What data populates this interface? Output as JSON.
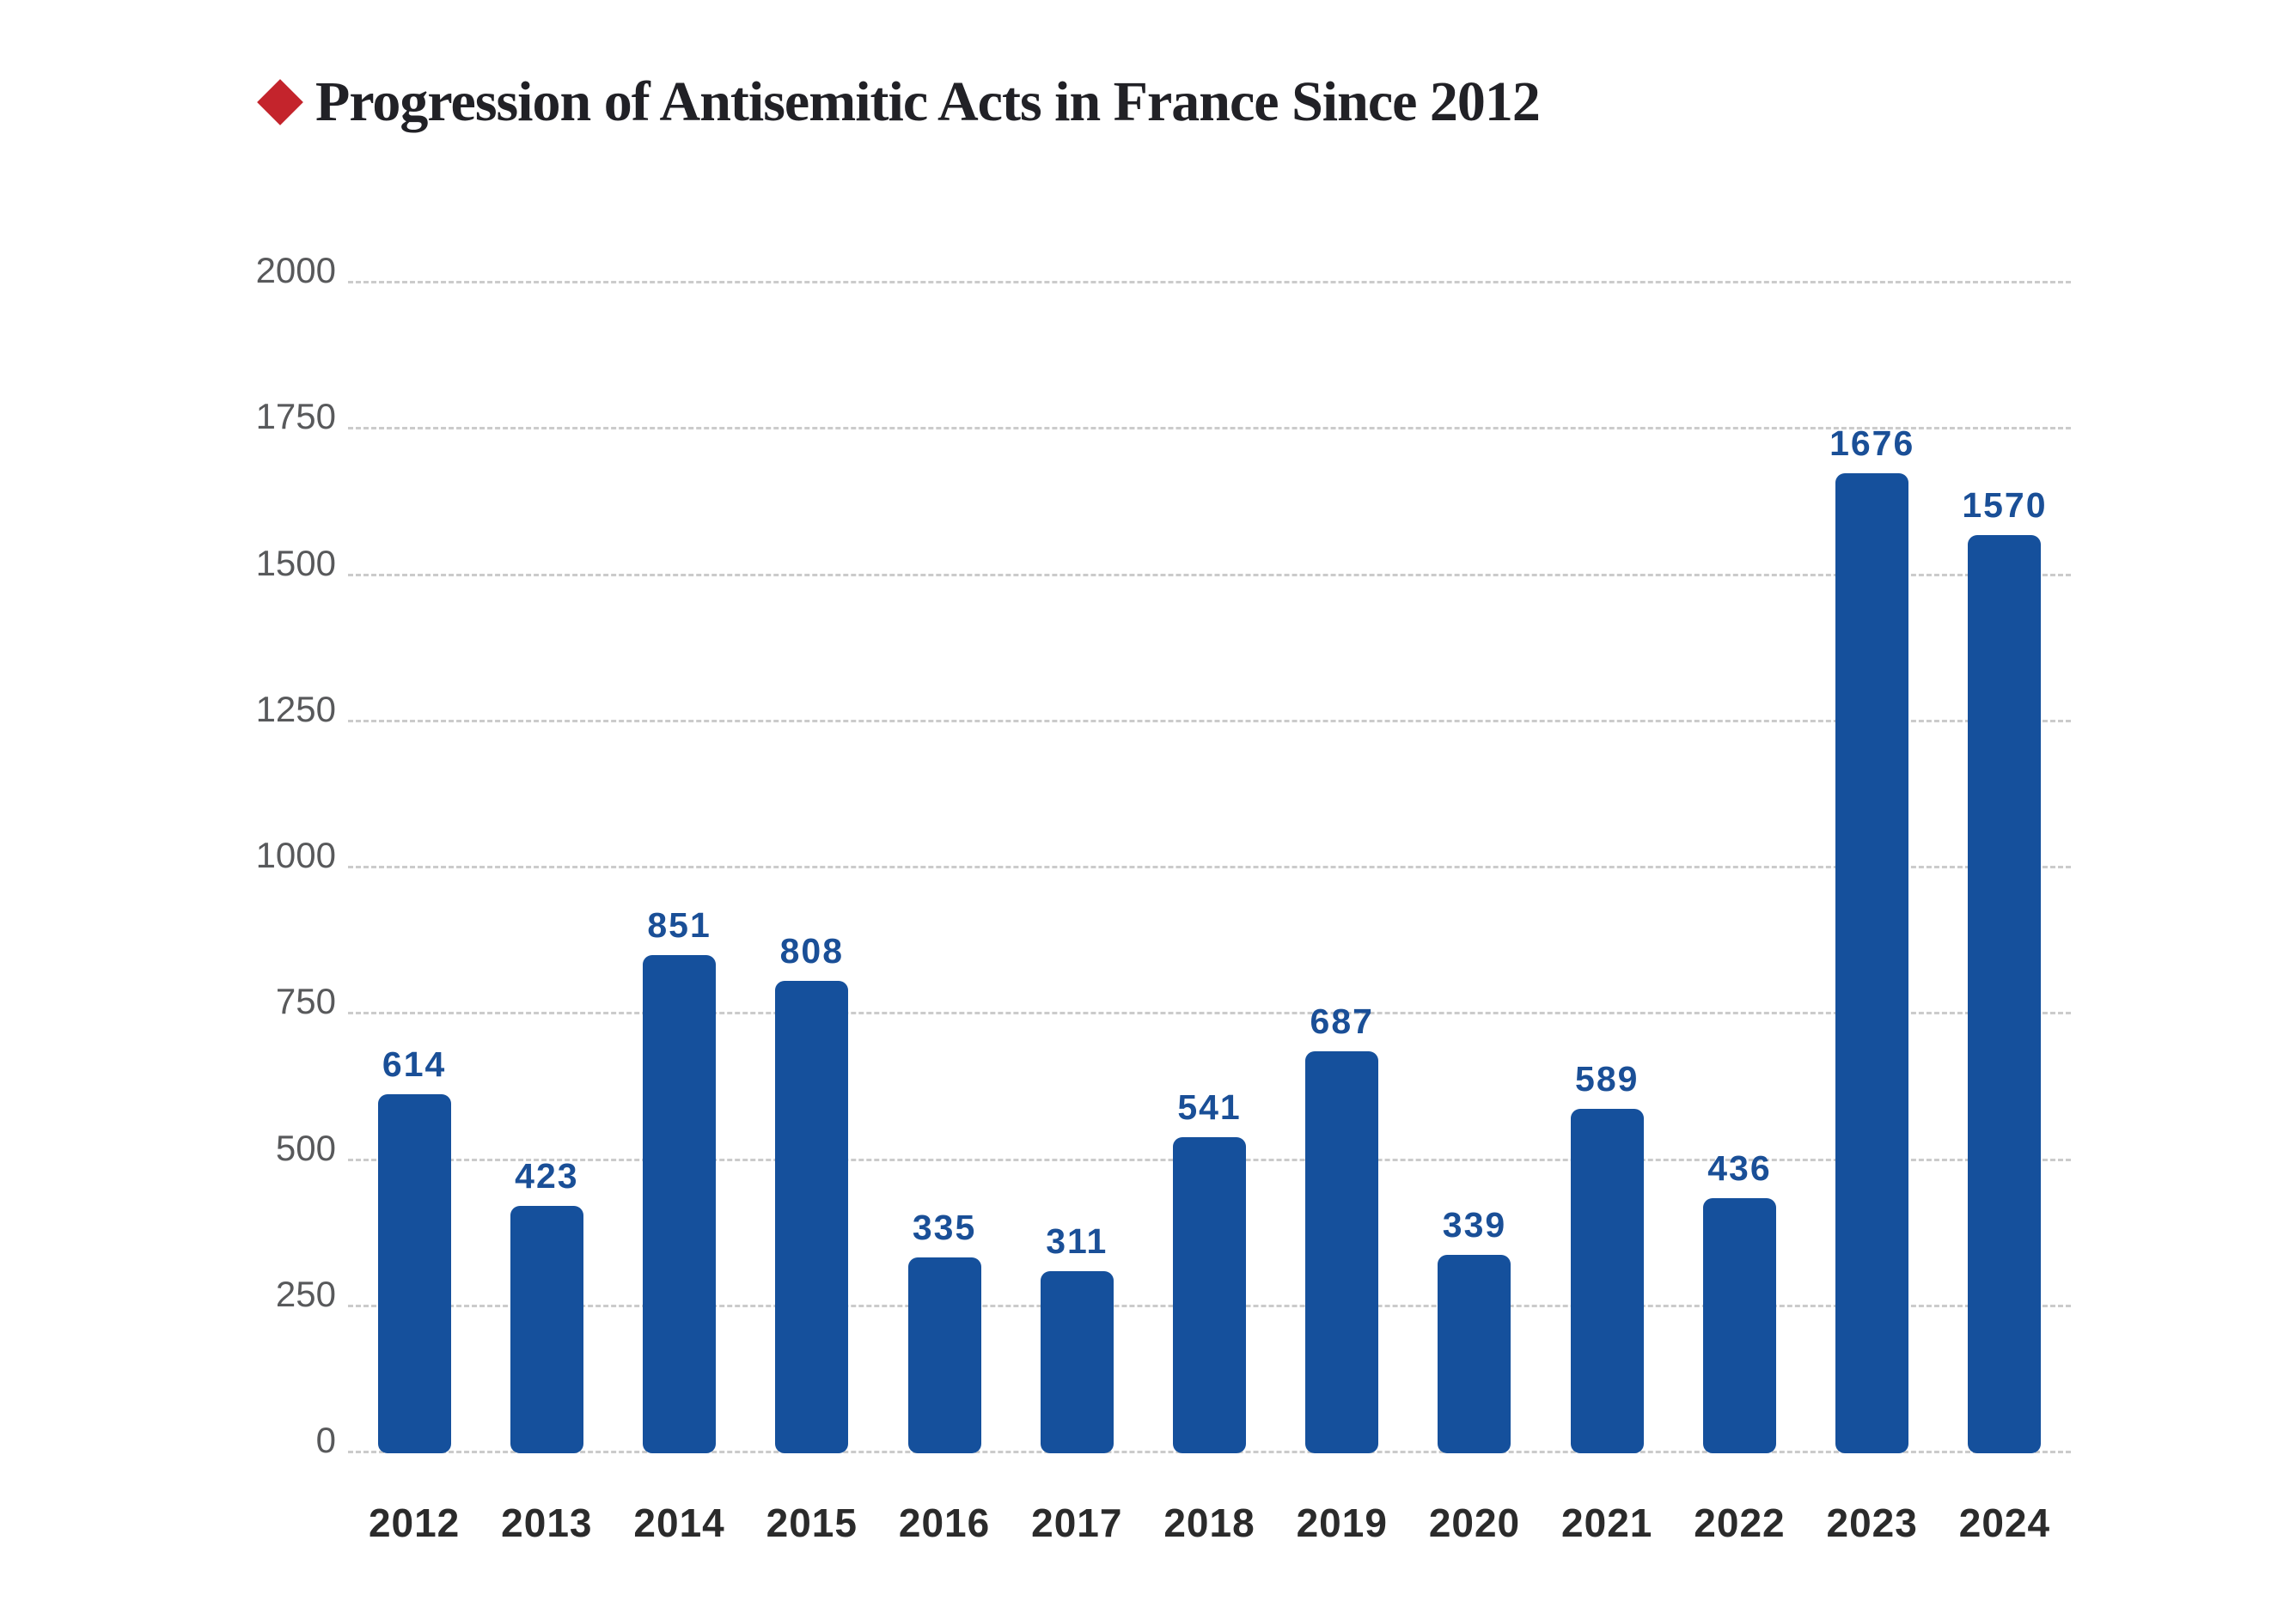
{
  "header": {
    "title": "Progression of Antisemitic Acts in France Since 2012",
    "bullet_icon": "red-diamond",
    "bullet_color": "#C4242C"
  },
  "chart_data": {
    "type": "bar",
    "title": "Progression of Antisemitic Acts in France Since 2012",
    "categories": [
      "2012",
      "2013",
      "2014",
      "2015",
      "2016",
      "2017",
      "2018",
      "2019",
      "2020",
      "2021",
      "2022",
      "2023",
      "2024"
    ],
    "values": [
      614,
      423,
      851,
      808,
      335,
      311,
      541,
      687,
      339,
      589,
      436,
      1676,
      1570
    ],
    "xlabel": "",
    "ylabel": "",
    "ylim": [
      0,
      2000
    ],
    "y_ticks": [
      0,
      250,
      500,
      750,
      1000,
      1250,
      1500,
      1750,
      2000
    ],
    "grid": "horizontal-dashed",
    "legend": "none",
    "value_labels": "above-bars",
    "colors": {
      "bar": "#15509C",
      "value_label": "#1A4F97",
      "y_tick_label": "#58595B",
      "x_tick_label": "#2B2B2B",
      "gridline": "#CBCBCB",
      "title": "#212126",
      "bullet": "#C4242C",
      "background": "#FFFFFF"
    }
  }
}
